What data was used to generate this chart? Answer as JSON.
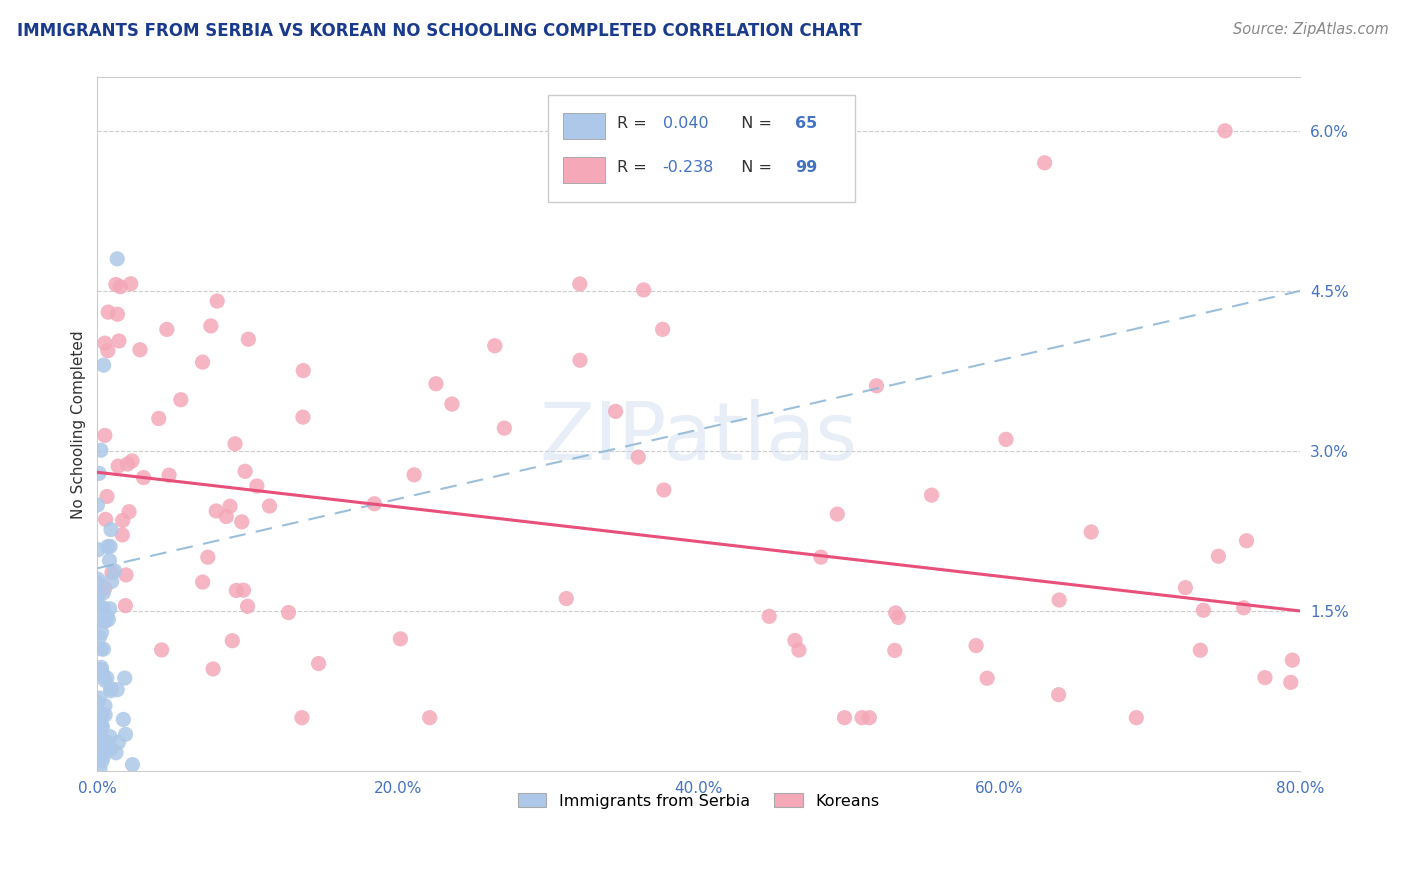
{
  "title": "IMMIGRANTS FROM SERBIA VS KOREAN NO SCHOOLING COMPLETED CORRELATION CHART",
  "source_text": "Source: ZipAtlas.com",
  "ylabel": "No Schooling Completed",
  "watermark": "ZIPatlas",
  "legend_r1": "R = ",
  "legend_v1": "0.040",
  "legend_n1_label": "N = ",
  "legend_n1_val": "65",
  "legend_r2": "R = ",
  "legend_v2": "-0.238",
  "legend_n2_label": "N = ",
  "legend_n2_val": "99",
  "legend_labels_bottom": [
    "Immigrants from Serbia",
    "Koreans"
  ],
  "serbia_color": "#adc8e8",
  "korea_color": "#f4a8b8",
  "serbia_trend_color": "#90b8d8",
  "korea_trend_color": "#e8507a",
  "title_color": "#1a3a8c",
  "right_axis_color": "#4472c4",
  "source_color": "#888888",
  "label_color": "#333333",
  "legend_value_color": "#4472c4",
  "ytick_labels": [
    "1.5%",
    "3.0%",
    "4.5%",
    "6.0%"
  ],
  "ytick_values": [
    0.015,
    0.03,
    0.045,
    0.06
  ],
  "xtick_values": [
    0.0,
    0.2,
    0.4,
    0.6,
    0.8
  ],
  "xtick_labels": [
    "0.0%",
    "20.0%",
    "40.0%",
    "60.0%",
    "80.0%"
  ],
  "xlim": [
    0.0,
    0.8
  ],
  "ylim": [
    0.0,
    0.065
  ],
  "serbia_trend_x0": 0.0,
  "serbia_trend_y0": 0.019,
  "serbia_trend_x1": 0.8,
  "serbia_trend_y1": 0.045,
  "korea_trend_x0": 0.0,
  "korea_trend_y0": 0.028,
  "korea_trend_x1": 0.8,
  "korea_trend_y1": 0.015
}
